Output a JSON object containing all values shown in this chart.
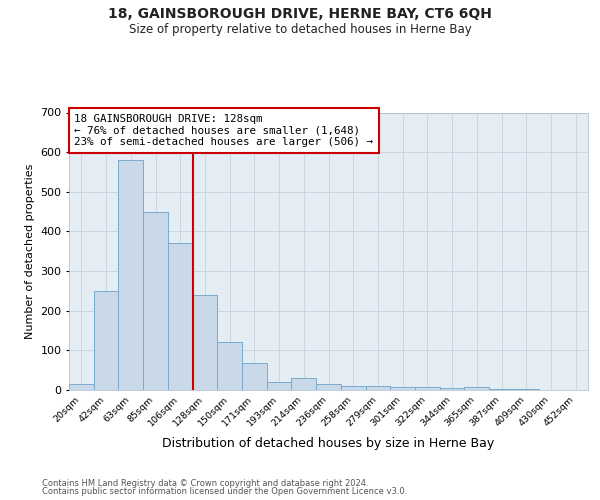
{
  "title": "18, GAINSBOROUGH DRIVE, HERNE BAY, CT6 6QH",
  "subtitle": "Size of property relative to detached houses in Herne Bay",
  "xlabel": "Distribution of detached houses by size in Herne Bay",
  "ylabel": "Number of detached properties",
  "bar_labels": [
    "20sqm",
    "42sqm",
    "63sqm",
    "85sqm",
    "106sqm",
    "128sqm",
    "150sqm",
    "171sqm",
    "193sqm",
    "214sqm",
    "236sqm",
    "258sqm",
    "279sqm",
    "301sqm",
    "322sqm",
    "344sqm",
    "365sqm",
    "387sqm",
    "409sqm",
    "430sqm",
    "452sqm"
  ],
  "bar_values": [
    15,
    250,
    580,
    450,
    370,
    240,
    120,
    68,
    20,
    30,
    15,
    10,
    10,
    7,
    7,
    5,
    7,
    3,
    2,
    1,
    1
  ],
  "property_line_index": 5,
  "bar_color": "#c9d9ea",
  "bar_edge_color": "#7aabcc",
  "vline_color": "#cc0000",
  "annotation_text": "18 GAINSBOROUGH DRIVE: 128sqm\n← 76% of detached houses are smaller (1,648)\n23% of semi-detached houses are larger (506) →",
  "annotation_box_color": "#ffffff",
  "annotation_box_edge": "#cc0000",
  "grid_color": "#ccd6e0",
  "bg_color": "#e4ecf4",
  "ylim": [
    0,
    700
  ],
  "yticks": [
    0,
    100,
    200,
    300,
    400,
    500,
    600,
    700
  ],
  "footer1": "Contains HM Land Registry data © Crown copyright and database right 2024.",
  "footer2": "Contains public sector information licensed under the Open Government Licence v3.0."
}
